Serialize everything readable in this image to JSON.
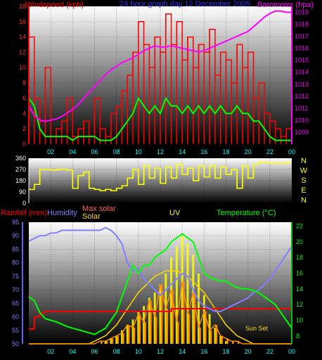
{
  "header": {
    "windspeed_label": "Windspeed (kph)",
    "title": "24 hour graph day   12 December 2005",
    "barometer_label": "Barometer (hpa)"
  },
  "colors": {
    "background_top": "#ffffff",
    "background_bottom": "#000000",
    "wind": "#ff0000",
    "gust": "#00ff00",
    "barometer": "#ff00ff",
    "direction": "#ffff00",
    "rain": "#ff0000",
    "humidity": "#8080ff",
    "max_solar": "#ffd700",
    "solar": "#ff8c00",
    "uv": "#ffff00",
    "temperature": "#00ff00"
  },
  "x_ticks": [
    "02",
    "04",
    "06",
    "08",
    "10",
    "12",
    "14",
    "16",
    "18",
    "20",
    "22",
    "00"
  ],
  "chart_data": [
    {
      "type": "line",
      "title": "24 hour graph day   12 December 2005",
      "x_hours": [
        0,
        0.5,
        1,
        1.5,
        2,
        2.5,
        3,
        3.5,
        4,
        4.5,
        5,
        5.5,
        6,
        6.5,
        7,
        7.5,
        8,
        8.5,
        9,
        9.5,
        10,
        10.5,
        11,
        11.5,
        12,
        12.5,
        13,
        13.5,
        14,
        14.5,
        15,
        15.5,
        16,
        16.5,
        17,
        17.5,
        18,
        18.5,
        19,
        19.5,
        20,
        20.5,
        21,
        21.5,
        22,
        22.5,
        23,
        23.5,
        24
      ],
      "ylabel_left": "Windspeed (kph)",
      "ylim_left": [
        0,
        18
      ],
      "yticks_left": [
        0,
        2,
        4,
        6,
        8,
        10,
        12,
        14,
        16,
        18
      ],
      "ylabel_right": "Barometer (hpa)",
      "ylim_right": [
        1008,
        1019.5
      ],
      "yticks_right": [
        1009,
        1010,
        1011,
        1012,
        1013,
        1014,
        1015,
        1016,
        1017,
        1018,
        1019
      ],
      "series": [
        {
          "name": "Windspeed (kph)",
          "axis": "left",
          "values": [
            14,
            6,
            3,
            10,
            1,
            2,
            3,
            6,
            1,
            2,
            3,
            1,
            6,
            2,
            1,
            4,
            5,
            7,
            9,
            12,
            16,
            13,
            10,
            14,
            12,
            17,
            13,
            16,
            11,
            14,
            10,
            13,
            12,
            15,
            9,
            12,
            11,
            8,
            13,
            10,
            12,
            6,
            8,
            4,
            3,
            2,
            1,
            2,
            2
          ]
        },
        {
          "name": "Barometer (hpa)",
          "axis": "right",
          "values": [
            1011.2,
            1010.4,
            1010.0,
            1009.9,
            1010.0,
            1010.1,
            1010.3,
            1010.6,
            1010.9,
            1011.3,
            1011.8,
            1012.3,
            1012.8,
            1013.3,
            1013.8,
            1014.2,
            1014.5,
            1014.8,
            1015.0,
            1015.2,
            1015.5,
            1015.8,
            1016.0,
            1016.2,
            1016.1,
            1016.1,
            1016.2,
            1016.1,
            1016.0,
            1015.9,
            1015.8,
            1015.7,
            1015.8,
            1016.0,
            1016.2,
            1016.4,
            1016.6,
            1016.8,
            1017.0,
            1017.2,
            1017.4,
            1017.8,
            1018.2,
            1018.6,
            1018.9,
            1019.1,
            1019.1,
            1019.0,
            1019.0
          ]
        },
        {
          "name": "Gust",
          "axis": "left",
          "values": [
            6,
            5,
            2,
            1,
            1,
            1,
            1,
            1,
            0.5,
            1,
            1,
            1,
            1,
            0.5,
            0.5,
            0.5,
            1,
            2,
            3,
            4,
            6,
            5,
            4,
            5,
            4,
            6,
            5,
            5,
            4,
            5,
            4,
            5,
            4,
            5,
            4,
            5,
            4,
            4,
            5,
            4,
            4,
            3,
            3,
            2,
            1,
            0.5,
            0.5,
            0.5,
            0.5
          ]
        }
      ]
    },
    {
      "type": "scatter",
      "ylim": [
        0,
        360
      ],
      "yticks": [
        0,
        90,
        180,
        270,
        360
      ],
      "compass_labels": [
        "N",
        "W",
        "S",
        "E",
        "N"
      ],
      "x_hours": [
        0,
        0.5,
        1,
        1.5,
        2,
        2.5,
        3,
        3.5,
        4,
        4.5,
        5,
        5.5,
        6,
        6.5,
        7,
        7.5,
        8,
        8.5,
        9,
        9.5,
        10,
        10.5,
        11,
        11.5,
        12,
        12.5,
        13,
        13.5,
        14,
        14.5,
        15,
        15.5,
        16,
        16.5,
        17,
        17.5,
        18,
        18.5,
        19,
        19.5,
        20,
        20.5,
        21,
        21.5,
        22,
        22.5,
        23,
        23.5,
        24
      ],
      "series": [
        {
          "name": "Wind direction",
          "values": [
            110,
            150,
            270,
            268,
            265,
            270,
            272,
            265,
            120,
            220,
            250,
            120,
            110,
            100,
            110,
            100,
            120,
            140,
            200,
            270,
            150,
            300,
            200,
            280,
            160,
            290,
            200,
            310,
            230,
            280,
            180,
            300,
            210,
            300,
            200,
            290,
            230,
            270,
            120,
            300,
            200,
            310,
            330,
            325,
            320,
            320,
            320,
            325,
            325
          ]
        }
      ]
    },
    {
      "type": "line",
      "legend": [
        "Rainfall (mm)",
        "Humidity",
        "Max solar",
        "Solar",
        "UV",
        "Temperature (°C)"
      ],
      "x_hours": [
        0,
        0.5,
        1,
        1.5,
        2,
        2.5,
        3,
        3.5,
        4,
        4.5,
        5,
        5.5,
        6,
        6.5,
        7,
        7.5,
        8,
        8.5,
        9,
        9.5,
        10,
        10.5,
        11,
        11.5,
        12,
        12.5,
        13,
        13.5,
        14,
        14.5,
        15,
        15.5,
        16,
        16.5,
        17,
        17.5,
        18,
        18.5,
        19,
        19.5,
        20,
        20.5,
        21,
        21.5,
        22,
        22.5,
        23,
        23.5,
        24
      ],
      "ylabel_left": "Rainfall (mm)",
      "ylim_left": [
        50,
        95
      ],
      "yticks_left": [
        50,
        55,
        60,
        65,
        70,
        75,
        80,
        85,
        90,
        95
      ],
      "ylabel_right": "Temperature (°C)",
      "ylim_right": [
        7,
        22.5
      ],
      "yticks_right": [
        8,
        10,
        12,
        14,
        16,
        18,
        20,
        22
      ],
      "annotation": "Sun Set",
      "series": [
        {
          "name": "Humidity",
          "axis": "left",
          "values": [
            88,
            89,
            90,
            90,
            91,
            91,
            92,
            92,
            92,
            92,
            92,
            92,
            92,
            92,
            93,
            92,
            90,
            87,
            80,
            77,
            78,
            74,
            72,
            70,
            68,
            70,
            72,
            74,
            76,
            75,
            70,
            66,
            64,
            63,
            62,
            62,
            63,
            64,
            65,
            66,
            67,
            69,
            70,
            72,
            74,
            77,
            80,
            83,
            86
          ]
        },
        {
          "name": "Temperature (°C)",
          "axis": "right",
          "values": [
            13,
            12.5,
            11,
            10.2,
            10,
            9.8,
            9.5,
            9.2,
            9,
            8.8,
            8.6,
            8.4,
            8.2,
            8.6,
            9,
            10,
            11,
            13,
            15,
            17,
            16,
            17,
            17,
            18,
            18.5,
            19,
            20,
            20.5,
            21,
            20.5,
            20,
            18,
            16,
            15.5,
            15.2,
            15,
            15,
            14.5,
            14.2,
            14,
            14,
            13.8,
            13.5,
            13,
            12.5,
            12,
            11,
            10,
            9
          ]
        },
        {
          "name": "Rainfall (mm)",
          "axis": "left",
          "values": [
            55.5,
            60,
            61.5,
            62,
            62,
            62,
            62,
            62,
            62,
            62,
            62,
            62,
            62,
            62,
            62,
            62,
            62,
            62,
            62,
            62,
            62,
            62,
            62,
            62,
            62,
            62,
            63,
            63,
            63,
            63,
            63,
            63,
            63,
            63,
            63,
            63,
            63,
            63,
            63,
            63,
            63,
            63,
            63,
            63,
            63,
            63,
            63,
            63,
            63
          ]
        },
        {
          "name": "Max solar",
          "axis": "left",
          "values": [
            50,
            50,
            50,
            50,
            50,
            50,
            50,
            50,
            50,
            50,
            50,
            50,
            51,
            52,
            53,
            55,
            57,
            60,
            63,
            66,
            69,
            71,
            73,
            75,
            76,
            77,
            77,
            77,
            76,
            75,
            73,
            71,
            69,
            66,
            63,
            60,
            57,
            55,
            53,
            52,
            51,
            50,
            50,
            50,
            50,
            50,
            50,
            50,
            50
          ]
        },
        {
          "name": "Solar",
          "axis": "left",
          "values": [
            50,
            50,
            50,
            50,
            50,
            50,
            50,
            50,
            50,
            50,
            50,
            50,
            50,
            51,
            51,
            52,
            53,
            54,
            57,
            56,
            61,
            58,
            66,
            60,
            72,
            63,
            70,
            58,
            73,
            61,
            69,
            56,
            62,
            55,
            57,
            53,
            52,
            51,
            51,
            50,
            50,
            50,
            50,
            50,
            50,
            50,
            50,
            50,
            50
          ]
        },
        {
          "name": "UV",
          "axis": "left",
          "values": [
            50,
            50,
            50,
            50,
            50,
            50,
            50,
            50,
            50,
            50,
            50,
            50,
            50,
            50,
            51,
            52,
            53,
            55,
            57,
            59,
            62,
            64,
            67,
            69,
            72,
            76,
            82,
            86,
            90,
            87,
            83,
            76,
            68,
            61,
            56,
            53,
            51,
            50,
            50,
            50,
            50,
            50,
            50,
            50,
            50,
            50,
            50,
            50,
            50
          ]
        }
      ]
    }
  ]
}
